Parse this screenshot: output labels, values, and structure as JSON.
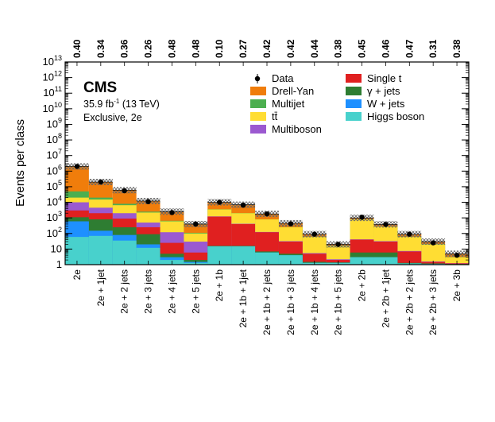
{
  "chart_data": {
    "type": "bar",
    "stacked": true,
    "ylabel": "Events per class",
    "yscale": "log",
    "ylim": [
      1,
      10000000000000
    ],
    "y_tick_labels": [
      "1",
      "10",
      "10^2",
      "10^3",
      "10^4",
      "10^5",
      "10^6",
      "10^7",
      "10^8",
      "10^9",
      "10^10",
      "10^11",
      "10^12",
      "10^13"
    ],
    "experiment": "CMS",
    "lumi_label": "35.9 fb^-1 (13 TeV)",
    "selection_label": "Exclusive,  2e",
    "categories": [
      "2e",
      "2e + 1jet",
      "2e + 2 jets",
      "2e + 3 jets",
      "2e + 4 jets",
      "2e + 5 jets",
      "2e + 1b",
      "2e + 1b + 1jet",
      "2e + 1b + 2 jets",
      "2e + 1b + 3 jets",
      "2e + 1b + 4 jets",
      "2e + 1b + 5 jets",
      "2e + 2b",
      "2e + 2b + 1jet",
      "2e + 2b + 2 jets",
      "2e + 2b + 3 jets",
      "2e + 3b"
    ],
    "top_axis_values": [
      "0.40",
      "0.34",
      "0.36",
      "0.26",
      "0.48",
      "0.48",
      "0.10",
      "0.27",
      "0.42",
      "0.42",
      "0.44",
      "0.38",
      "0.45",
      "0.46",
      "0.47",
      "0.31",
      "0.38"
    ],
    "data_points": [
      2000000,
      200000,
      55000,
      11000,
      2200,
      400,
      10000,
      6500,
      1800,
      420,
      90,
      20,
      1100,
      380,
      90,
      25,
      4
    ],
    "series": [
      {
        "name": "Higgs boson",
        "color": "#48d1cc",
        "values": [
          60,
          70,
          35,
          12,
          2,
          1.3,
          15,
          15,
          6,
          4,
          1.3,
          1.3,
          3,
          3,
          1.2,
          1.1,
          1.05
        ]
      },
      {
        "name": "W + jets",
        "color": "#1e90ff",
        "values": [
          600,
          150,
          80,
          20,
          3,
          1.5,
          15,
          15,
          6,
          4,
          1.3,
          1.3,
          3,
          3,
          1.2,
          1.1,
          1.05
        ]
      },
      {
        "name": "γ + jets",
        "color": "#2e7d32",
        "values": [
          1100,
          800,
          250,
          90,
          5,
          2,
          16,
          16,
          7,
          5,
          1.5,
          1.4,
          6,
          6,
          1.3,
          1.2,
          1.1
        ]
      },
      {
        "name": "Single t",
        "color": "#e02020",
        "values": [
          3000,
          2000,
          900,
          250,
          25,
          6,
          1200,
          400,
          120,
          30,
          5,
          2,
          40,
          30,
          7,
          1.5,
          1.2
        ]
      },
      {
        "name": "Multiboson",
        "color": "#9b59d0",
        "values": [
          10000,
          4500,
          2000,
          500,
          120,
          30,
          1250,
          420,
          125,
          32,
          5.5,
          2.2,
          42,
          32,
          7.5,
          1.6,
          1.25
        ]
      },
      {
        "name": "tt̄",
        "color": "#ffdd33",
        "values": [
          20000,
          15000,
          6500,
          2200,
          600,
          100,
          3500,
          2000,
          800,
          250,
          60,
          15,
          800,
          280,
          60,
          20,
          3
        ]
      },
      {
        "name": "Multijet",
        "color": "#4caf50",
        "values": [
          50000,
          20000,
          8000,
          2500,
          650,
          110,
          3600,
          2050,
          810,
          255,
          62,
          16,
          810,
          285,
          62,
          21,
          3.1
        ]
      },
      {
        "name": "Drell-Yan",
        "color": "#f07d0b",
        "values": [
          2000000,
          200000,
          60000,
          12000,
          2500,
          400,
          10000,
          7000,
          1800,
          450,
          90,
          20,
          1000,
          380,
          90,
          30,
          5
        ]
      }
    ],
    "legend": [
      {
        "label": "Data",
        "kind": "marker"
      },
      {
        "label": "Drell-Yan",
        "color": "#f07d0b",
        "kind": "box"
      },
      {
        "label": "Multijet",
        "color": "#4caf50",
        "kind": "box"
      },
      {
        "label": "tt̄",
        "color": "#ffdd33",
        "kind": "box"
      },
      {
        "label": "Multiboson",
        "color": "#9b59d0",
        "kind": "box"
      },
      {
        "label": "Single t",
        "color": "#e02020",
        "kind": "box"
      },
      {
        "label": "γ + jets",
        "color": "#2e7d32",
        "kind": "box"
      },
      {
        "label": "W + jets",
        "color": "#1e90ff",
        "kind": "box"
      },
      {
        "label": "Higgs boson",
        "color": "#48d1cc",
        "kind": "box"
      }
    ],
    "legend_position": "top-right",
    "grid": false
  }
}
